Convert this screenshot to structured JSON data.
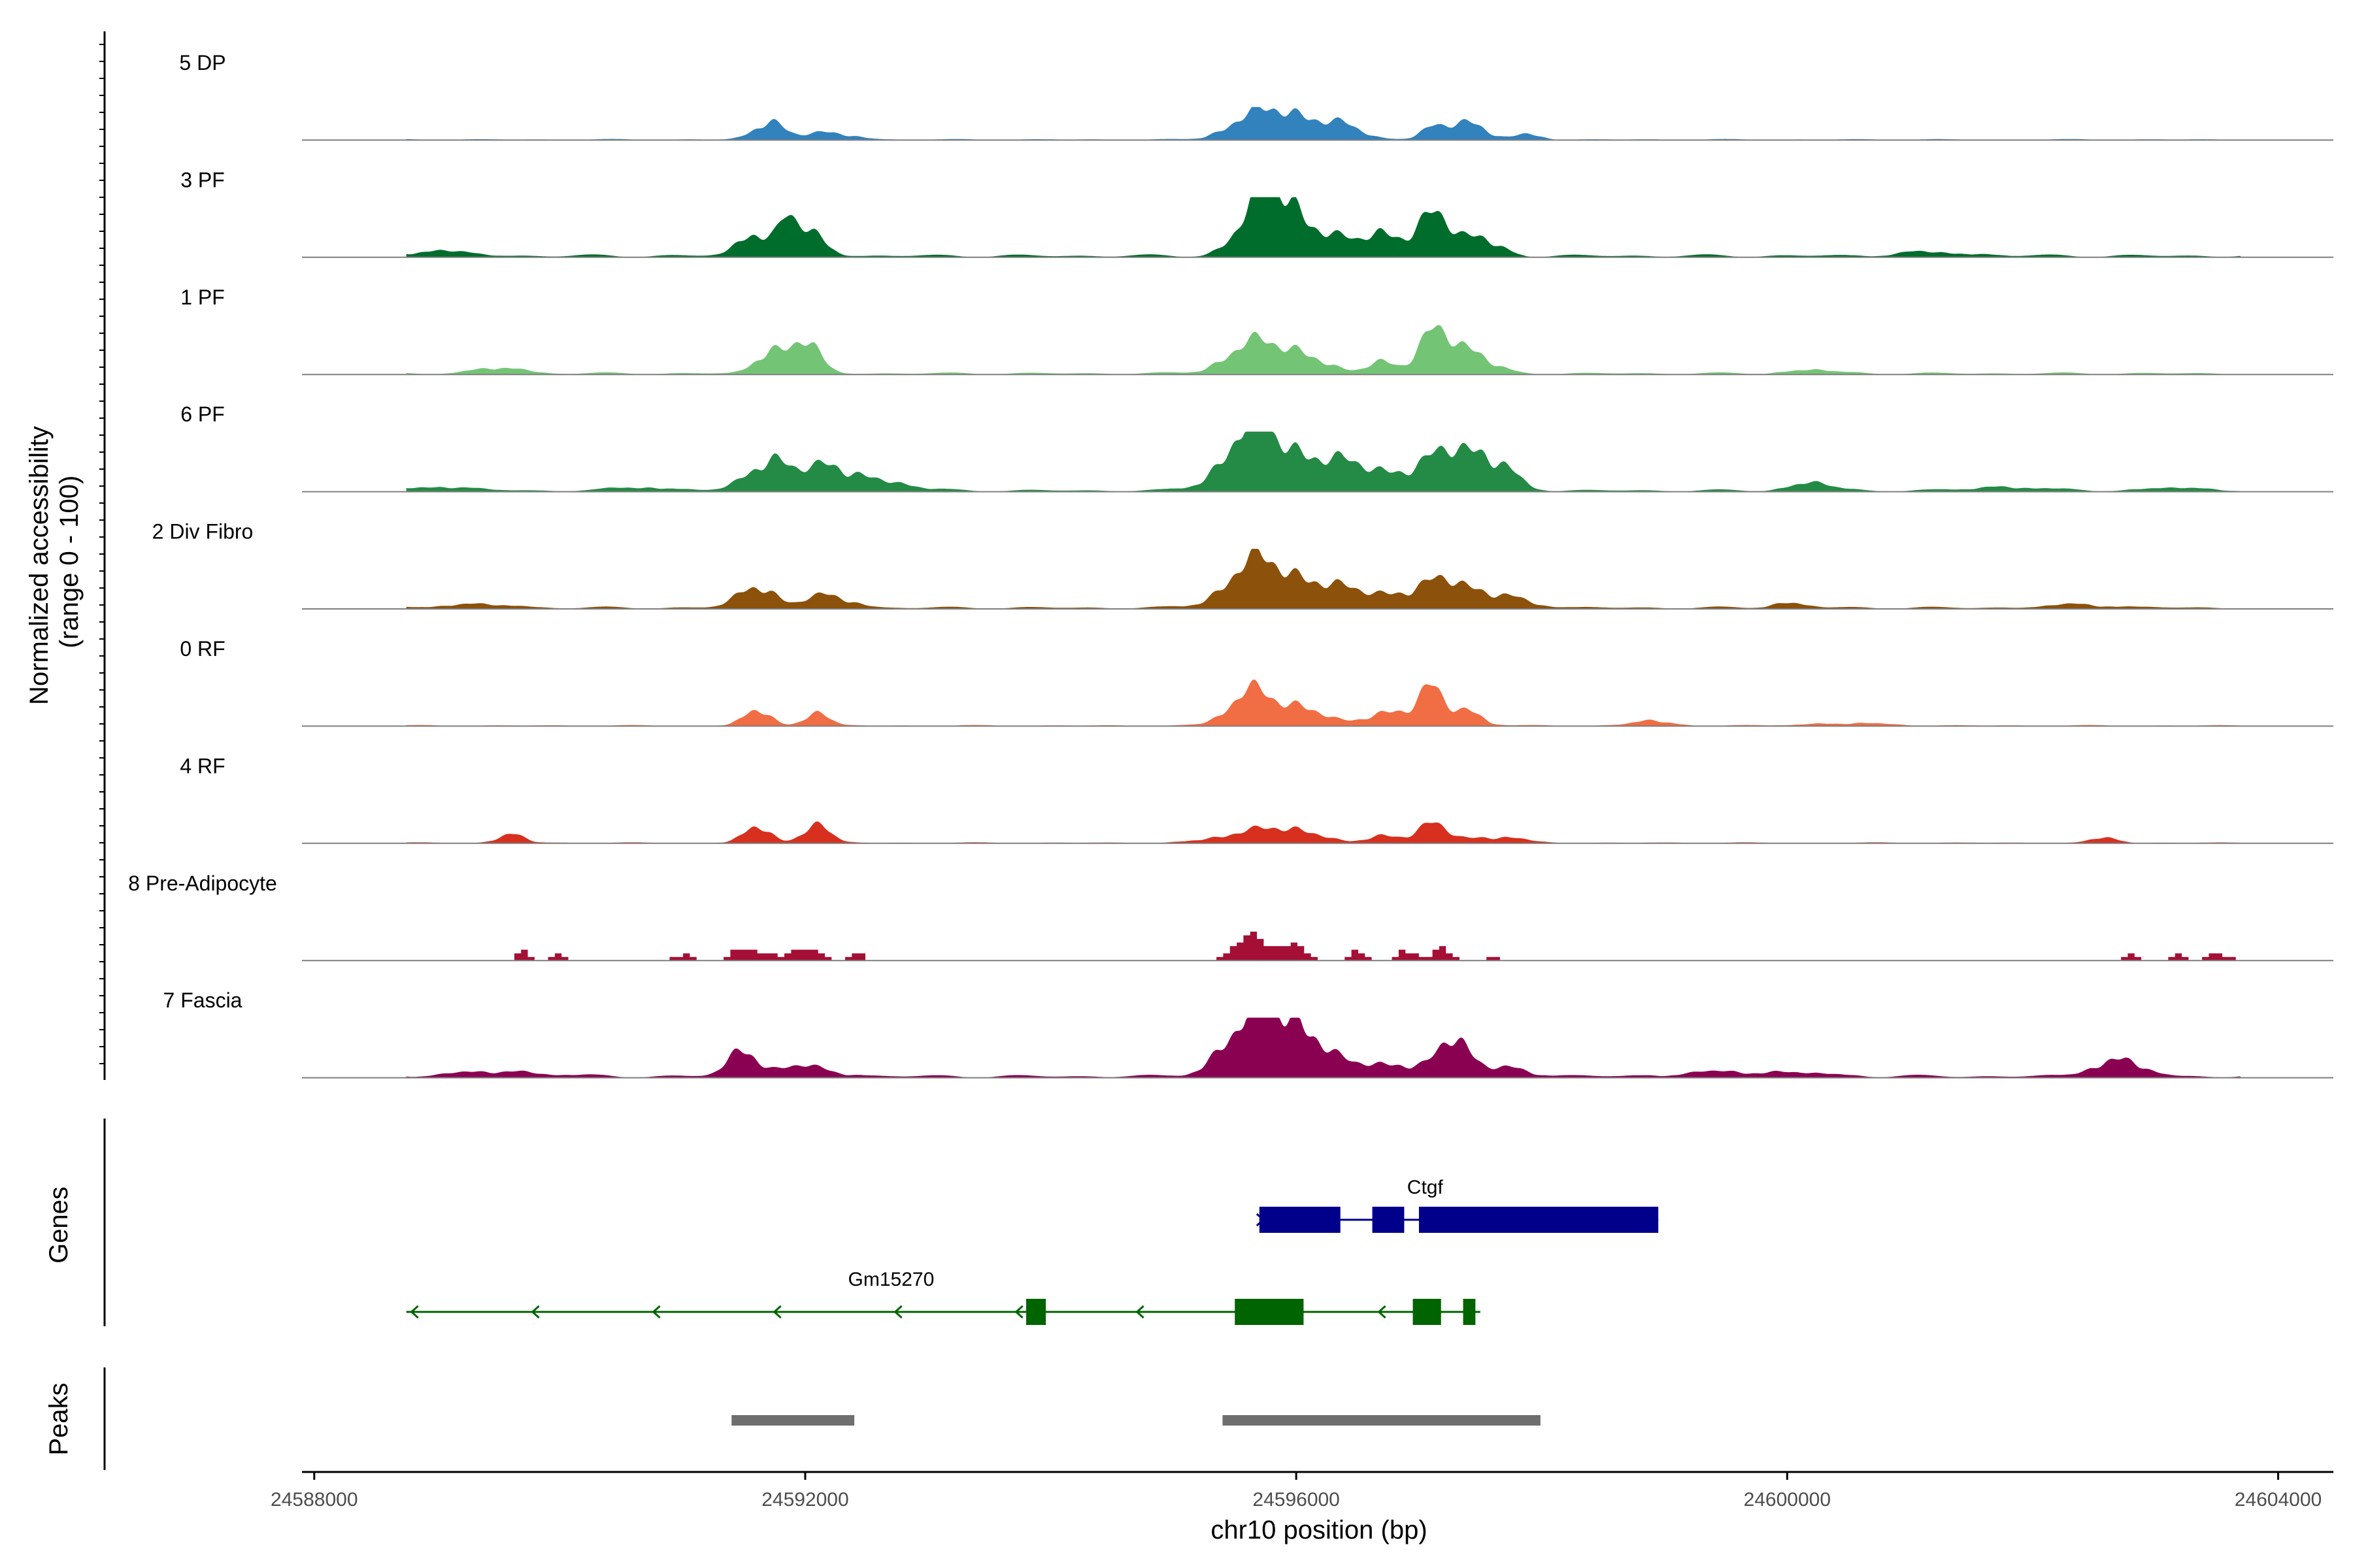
{
  "chart_data": {
    "type": "area",
    "title": "",
    "xlabel": "chr10 position (bp)",
    "ylabel": "Normalized accessibility\n(range 0 - 100)",
    "xlim": [
      24587900,
      24604450
    ],
    "x_ticks": [
      24588000,
      24592000,
      24596000,
      24600000,
      24604000
    ],
    "x_tick_labels": [
      "24588000",
      "24592000",
      "24596000",
      "24600000",
      "24604000"
    ],
    "y_range": [
      0,
      100
    ],
    "coverage_extent": [
      24588750,
      24603700
    ],
    "tracks": [
      {
        "name": "5 DP",
        "color": "#3182bd",
        "scale": 0.55,
        "floor": 3.5,
        "spread": 1.0,
        "peaks": [
          [
            24591700,
            120,
            55
          ],
          [
            24592200,
            180,
            22
          ],
          [
            24595500,
            150,
            30
          ],
          [
            24595800,
            200,
            70
          ],
          [
            24596100,
            200,
            45
          ],
          [
            24596400,
            150,
            30
          ],
          [
            24597100,
            100,
            30
          ],
          [
            24597400,
            140,
            55
          ],
          [
            24597900,
            100,
            15
          ]
        ]
      },
      {
        "name": "3 PF",
        "color": "#006d2c",
        "scale": 1.0,
        "floor": 5,
        "spread": 1.0,
        "peaks": [
          [
            24589000,
            250,
            8
          ],
          [
            24591600,
            130,
            42
          ],
          [
            24592000,
            150,
            40
          ],
          [
            24591850,
            60,
            30
          ],
          [
            24595700,
            180,
            70
          ],
          [
            24595900,
            150,
            55
          ],
          [
            24596200,
            220,
            38
          ],
          [
            24596700,
            120,
            35
          ],
          [
            24597100,
            160,
            62
          ],
          [
            24597500,
            150,
            30
          ],
          [
            24601200,
            300,
            6
          ]
        ]
      },
      {
        "name": "1 PF",
        "color": "#74c476",
        "scale": 0.9,
        "floor": 4,
        "spread": 1.0,
        "peaks": [
          [
            24589500,
            200,
            10
          ],
          [
            24591700,
            110,
            42
          ],
          [
            24592000,
            120,
            55
          ],
          [
            24595600,
            200,
            45
          ],
          [
            24596000,
            220,
            40
          ],
          [
            24596700,
            100,
            22
          ],
          [
            24597100,
            130,
            62
          ],
          [
            24597400,
            170,
            45
          ],
          [
            24600200,
            200,
            6
          ]
        ]
      },
      {
        "name": "6 PF",
        "color": "#238b45",
        "scale": 1.0,
        "floor": 4,
        "spread": 1.4,
        "peaks": [
          [
            24589000,
            200,
            6
          ],
          [
            24590700,
            150,
            6
          ],
          [
            24591700,
            120,
            52
          ],
          [
            24592200,
            130,
            40
          ],
          [
            24592600,
            180,
            14
          ],
          [
            24595600,
            150,
            75
          ],
          [
            24595900,
            200,
            45
          ],
          [
            24596300,
            180,
            30
          ],
          [
            24596900,
            250,
            28
          ],
          [
            24597300,
            150,
            45
          ],
          [
            24597600,
            120,
            40
          ],
          [
            24600200,
            120,
            12
          ],
          [
            24601800,
            200,
            6
          ],
          [
            24603200,
            200,
            4
          ]
        ]
      },
      {
        "name": "2 Div Fibro",
        "color": "#8c510a",
        "scale": 1.0,
        "floor": 4,
        "spread": 1.4,
        "peaks": [
          [
            24589300,
            200,
            6
          ],
          [
            24591600,
            100,
            40
          ],
          [
            24592200,
            120,
            22
          ],
          [
            24595600,
            150,
            50
          ],
          [
            24595900,
            180,
            42
          ],
          [
            24596300,
            160,
            26
          ],
          [
            24596800,
            160,
            18
          ],
          [
            24597200,
            150,
            35
          ],
          [
            24597600,
            180,
            20
          ],
          [
            24600000,
            100,
            8
          ],
          [
            24602400,
            200,
            5
          ]
        ]
      },
      {
        "name": "0 RF",
        "color": "#f16d43",
        "scale": 1.0,
        "floor": 2,
        "spread": 1.0,
        "peaks": [
          [
            24591600,
            100,
            30
          ],
          [
            24592100,
            100,
            20
          ],
          [
            24595600,
            160,
            50
          ],
          [
            24596000,
            200,
            35
          ],
          [
            24596800,
            200,
            25
          ],
          [
            24597100,
            100,
            50
          ],
          [
            24597400,
            120,
            25
          ],
          [
            24598900,
            150,
            8
          ],
          [
            24600500,
            300,
            4
          ]
        ]
      },
      {
        "name": "4 RF",
        "color": "#d7301f",
        "scale": 0.9,
        "floor": 2,
        "spread": 1.0,
        "peaks": [
          [
            24589600,
            100,
            15
          ],
          [
            24591600,
            100,
            35
          ],
          [
            24592100,
            110,
            32
          ],
          [
            24595600,
            250,
            18
          ],
          [
            24596000,
            200,
            22
          ],
          [
            24596700,
            120,
            14
          ],
          [
            24597100,
            130,
            32
          ],
          [
            24597600,
            200,
            12
          ],
          [
            24602600,
            100,
            10
          ]
        ]
      },
      {
        "name": "8 Pre-Adipocyte",
        "color": "#a50f35",
        "scale": 0.55,
        "floor": 0,
        "spread": 1.0,
        "step": 55,
        "peaks": [
          [
            24589700,
            60,
            25
          ],
          [
            24590000,
            50,
            20
          ],
          [
            24591000,
            80,
            20
          ],
          [
            24591550,
            120,
            45
          ],
          [
            24592000,
            120,
            35
          ],
          [
            24592400,
            70,
            22
          ],
          [
            24595600,
            120,
            70
          ],
          [
            24595950,
            120,
            50
          ],
          [
            24596500,
            60,
            30
          ],
          [
            24596900,
            80,
            35
          ],
          [
            24597200,
            70,
            35
          ],
          [
            24597600,
            50,
            22
          ],
          [
            24602800,
            60,
            20
          ],
          [
            24603200,
            50,
            20
          ],
          [
            24603500,
            100,
            20
          ]
        ]
      },
      {
        "name": "7 Fascia",
        "color": "#8b0152",
        "scale": 1.0,
        "floor": 5,
        "spread": 1.2,
        "peaks": [
          [
            24589500,
            300,
            8
          ],
          [
            24591500,
            100,
            45
          ],
          [
            24592000,
            200,
            15
          ],
          [
            24595500,
            150,
            55
          ],
          [
            24595800,
            150,
            80
          ],
          [
            24596100,
            150,
            62
          ],
          [
            24596800,
            250,
            22
          ],
          [
            24597300,
            100,
            55
          ],
          [
            24597700,
            150,
            15
          ],
          [
            24599700,
            400,
            8
          ],
          [
            24602700,
            150,
            30
          ]
        ]
      }
    ],
    "genes_panel_label": "Genes",
    "genes": [
      {
        "name": "Ctgf",
        "color": "#00008b",
        "strand": "+",
        "start": 24595700,
        "end": 24598950,
        "label_pos": 24597050,
        "exons": [
          [
            24595700,
            24596360
          ],
          [
            24596620,
            24596880
          ],
          [
            24597000,
            24598950
          ]
        ]
      },
      {
        "name": "Gm15270",
        "color": "#006400",
        "strand": "-",
        "start": 24588750,
        "end": 24597500,
        "label_pos": 24592700,
        "exons": [
          [
            24593800,
            24593960
          ],
          [
            24595500,
            24596060
          ],
          [
            24596950,
            24597180
          ],
          [
            24597360,
            24597460
          ]
        ]
      }
    ],
    "peaks_panel_label": "Peaks",
    "peak_color": "#6e6e6e",
    "peak_regions": [
      [
        24591400,
        24592400
      ],
      [
        24595400,
        24597990
      ]
    ]
  }
}
